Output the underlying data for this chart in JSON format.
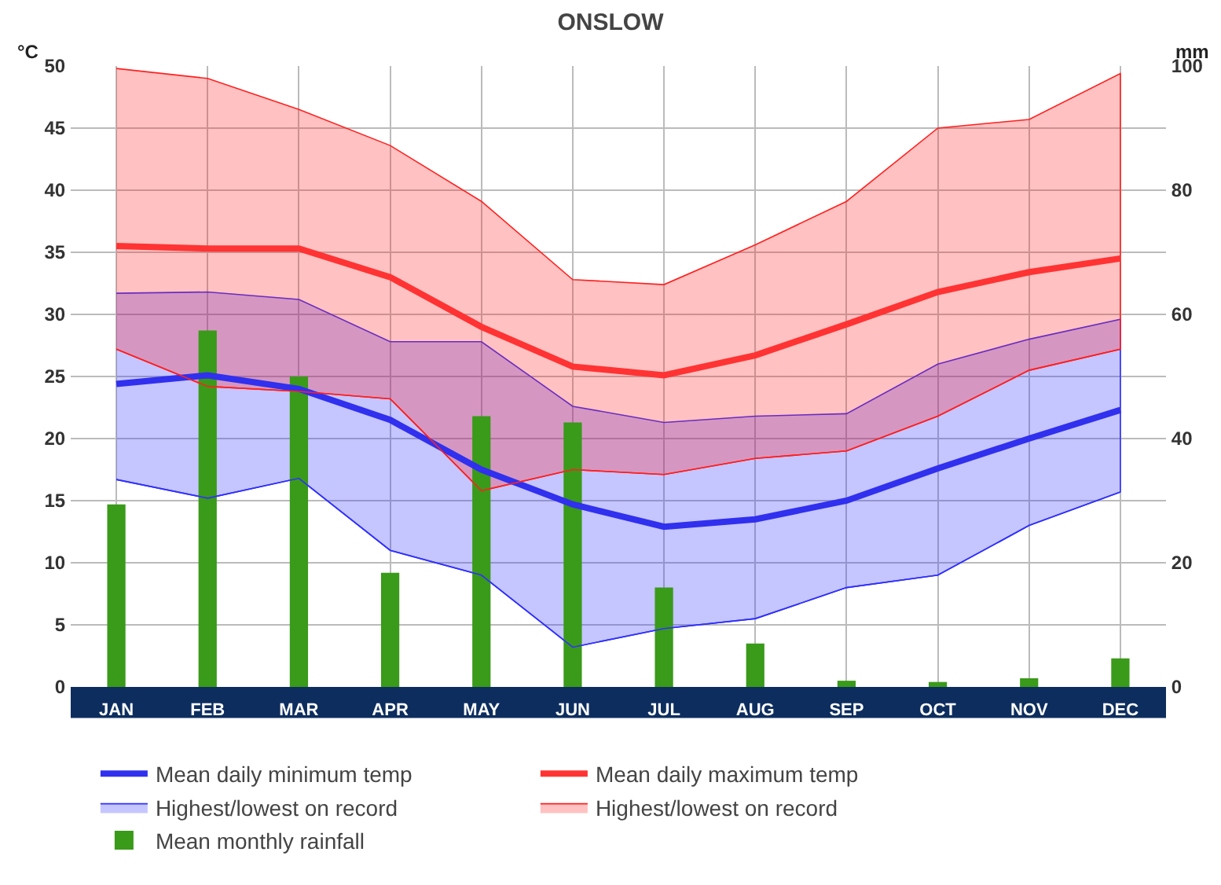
{
  "chart_data": {
    "type": "line",
    "title": "ONSLOW",
    "ylabel": "°C",
    "y2label": "mm",
    "categories": [
      "JAN",
      "FEB",
      "MAR",
      "APR",
      "MAY",
      "JUN",
      "JUL",
      "AUG",
      "SEP",
      "OCT",
      "NOV",
      "DEC"
    ],
    "ylim": [
      0,
      50
    ],
    "yticks": [
      0,
      5,
      10,
      15,
      20,
      25,
      30,
      35,
      40,
      45,
      50
    ],
    "y2lim": [
      0,
      100
    ],
    "y2ticks": [
      0,
      20,
      40,
      60,
      80,
      100
    ],
    "grid": true,
    "legend": "bottom",
    "marker": "none",
    "series": [
      {
        "name": "Mean daily minimum temp",
        "color": "#3030ee",
        "values": [
          24.4,
          25.1,
          24.0,
          21.5,
          17.5,
          14.7,
          12.9,
          13.5,
          15.0,
          17.6,
          20.0,
          22.3
        ]
      },
      {
        "name": "Mean daily maximum temp",
        "color": "#ff3333",
        "values": [
          35.5,
          35.3,
          35.3,
          33.0,
          29.0,
          25.8,
          25.1,
          26.7,
          29.2,
          31.8,
          33.4,
          34.5
        ]
      },
      {
        "type": "line",
        "color": "#3030ff",
        "values": [
          16.7,
          15.2,
          16.8,
          11.0,
          9.0,
          3.2,
          4.7,
          5.5,
          8.0,
          9.0,
          13.0,
          15.7
        ]
      },
      {
        "name": "Highest/lowest on record",
        "type": "area",
        "color": "#3030ff",
        "values": [
          31.7,
          31.8,
          31.2,
          27.8,
          27.8,
          22.6,
          21.3,
          21.8,
          22.0,
          26.0,
          28.0,
          29.6
        ]
      },
      {
        "type": "line",
        "color": "#ff2020",
        "values": [
          27.2,
          24.2,
          23.8,
          23.2,
          15.8,
          17.5,
          17.1,
          18.4,
          19.0,
          21.8,
          25.5,
          27.2
        ]
      },
      {
        "name": "Highest/lowest on record",
        "type": "area",
        "color": "#ff2020",
        "values": [
          49.8,
          49.0,
          46.5,
          43.6,
          39.1,
          32.8,
          32.4,
          35.6,
          39.1,
          45.0,
          45.7,
          49.4
        ]
      },
      {
        "name": "Mean monthly rainfall",
        "type": "bar",
        "axis": "y2",
        "color": "#3a9a1a",
        "values": [
          29.4,
          57.4,
          50.0,
          18.4,
          43.6,
          42.6,
          16.0,
          7.0,
          1.0,
          0.8,
          1.4,
          4.6
        ]
      }
    ]
  }
}
